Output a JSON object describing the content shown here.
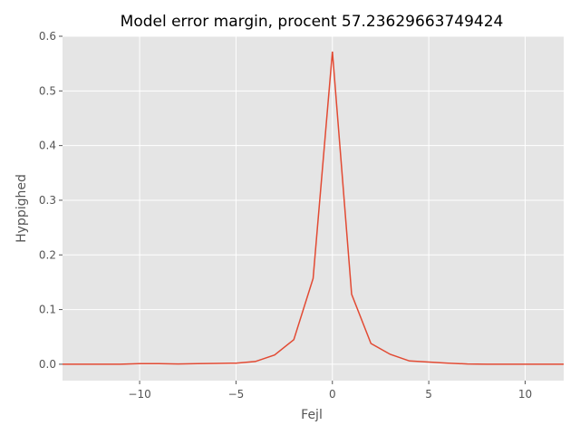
{
  "chart_data": {
    "type": "line",
    "title": "Model error margin, procent 57.23629663749424",
    "xlabel": "Fejl",
    "ylabel": "Hyppighed",
    "xlim": [
      -14,
      12
    ],
    "ylim": [
      -0.03,
      0.6
    ],
    "x_ticks": [
      -10,
      -5,
      0,
      5,
      10
    ],
    "x_tick_labels": [
      "−10",
      "−5",
      "0",
      "5",
      "10"
    ],
    "y_ticks": [
      0.0,
      0.1,
      0.2,
      0.3,
      0.4,
      0.5,
      0.6
    ],
    "y_tick_labels": [
      "0.0",
      "0.1",
      "0.2",
      "0.3",
      "0.4",
      "0.5",
      "0.6"
    ],
    "grid": true,
    "colors": {
      "background": "#e5e5e5",
      "grid": "#ffffff",
      "line": "#e24a33"
    },
    "series": [
      {
        "x": [
          -14,
          -13,
          -12,
          -11,
          -10,
          -9,
          -8,
          -7,
          -6,
          -5,
          -4,
          -3,
          -2,
          -1,
          0,
          1,
          2,
          3,
          4,
          5,
          6,
          7,
          8,
          9,
          10,
          11,
          12
        ],
        "values": [
          0.0,
          0.0,
          0.0,
          0.0,
          0.001,
          0.001,
          0.0005,
          0.001,
          0.0015,
          0.002,
          0.005,
          0.017,
          0.045,
          0.157,
          0.572,
          0.128,
          0.038,
          0.018,
          0.006,
          0.004,
          0.002,
          0.0005,
          0.0,
          0.0,
          0.0,
          0.0,
          0.0
        ]
      }
    ]
  }
}
